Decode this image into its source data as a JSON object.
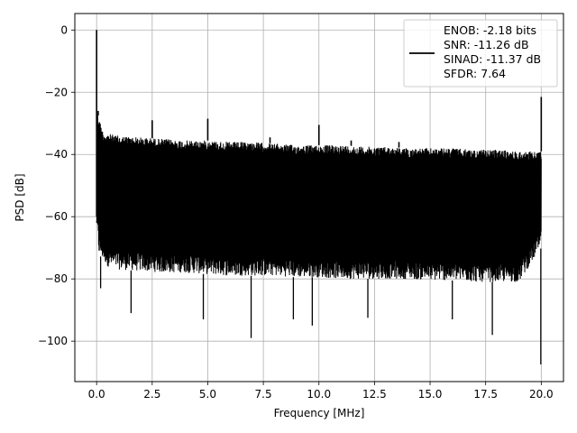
{
  "chart_data": {
    "type": "line",
    "xlabel": "Frequency [MHz]",
    "ylabel": "PSD [dB]",
    "xlim": [
      -0.98,
      21.0
    ],
    "ylim": [
      -113,
      5.3
    ],
    "xticks": [
      0.0,
      2.5,
      5.0,
      7.5,
      10.0,
      12.5,
      15.0,
      17.5,
      20.0
    ],
    "xtick_labels": [
      "0.0",
      "2.5",
      "5.0",
      "7.5",
      "10.0",
      "12.5",
      "15.0",
      "17.5",
      "20.0"
    ],
    "yticks": [
      0,
      -20,
      -40,
      -60,
      -80,
      -100
    ],
    "ytick_labels": [
      "0",
      "−20",
      "−40",
      "−60",
      "−80",
      "−100"
    ],
    "grid": true,
    "legend_position": "top-right",
    "series": [
      {
        "legend": [
          "ENOB: -2.18 bits",
          "SNR: -11.26 dB",
          "SINAD: -11.37 dB",
          "SFDR: 7.64"
        ],
        "color": "#000000",
        "upper_envelope": {
          "x": [
            0.0,
            0.05,
            0.3,
            1.0,
            2.0,
            3.0,
            4.0,
            5.0,
            6.0,
            7.0,
            8.0,
            9.0,
            10.0,
            11.0,
            12.0,
            13.0,
            14.0,
            15.0,
            16.0,
            17.0,
            18.0,
            19.0,
            20.0
          ],
          "y": [
            -60,
            -27,
            -33,
            -34,
            -34.5,
            -35,
            -35.5,
            -35.5,
            -36,
            -36,
            -36.5,
            -37,
            -37,
            -37,
            -37.5,
            -37.5,
            -38,
            -38,
            -38,
            -38.5,
            -38.5,
            -39,
            -39
          ]
        },
        "lower_envelope": {
          "x": [
            0.0,
            0.1,
            0.5,
            1.0,
            2.0,
            3.0,
            4.0,
            5.0,
            6.0,
            7.0,
            8.0,
            9.0,
            10.0,
            11.0,
            12.0,
            13.0,
            14.0,
            15.0,
            16.0,
            17.0,
            18.0,
            19.0,
            20.0
          ],
          "y": [
            -62,
            -72,
            -76,
            -77,
            -77.5,
            -78,
            -78,
            -78.5,
            -79,
            -79,
            -79,
            -79.5,
            -79.5,
            -80,
            -80,
            -80,
            -80,
            -80.5,
            -80.5,
            -81,
            -81,
            -81,
            -70
          ]
        },
        "spikes": [
          {
            "x": 0.0,
            "y": 0.0
          },
          {
            "x": 0.07,
            "y": -26
          },
          {
            "x": 2.5,
            "y": -29
          },
          {
            "x": 5.0,
            "y": -28.5
          },
          {
            "x": 7.8,
            "y": -34.5
          },
          {
            "x": 10.0,
            "y": -30.5
          },
          {
            "x": 11.45,
            "y": -35.5
          },
          {
            "x": 13.6,
            "y": -36
          },
          {
            "x": 20.0,
            "y": -21.5
          }
        ],
        "dips": [
          {
            "x": 0.18,
            "y": -83
          },
          {
            "x": 1.55,
            "y": -91
          },
          {
            "x": 4.8,
            "y": -93
          },
          {
            "x": 6.95,
            "y": -99
          },
          {
            "x": 8.85,
            "y": -93
          },
          {
            "x": 9.7,
            "y": -95
          },
          {
            "x": 12.2,
            "y": -92.5
          },
          {
            "x": 16.0,
            "y": -93
          },
          {
            "x": 17.8,
            "y": -98
          },
          {
            "x": 19.98,
            "y": -107.5
          }
        ]
      }
    ]
  }
}
